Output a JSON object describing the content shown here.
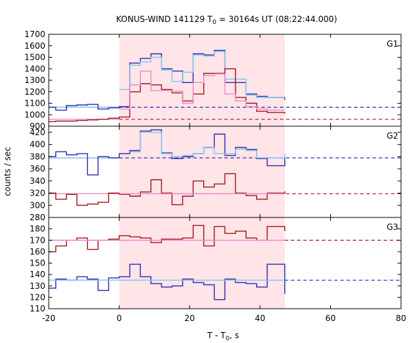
{
  "chart_data": {
    "type": "line",
    "title": "KONUS-WIND 141129 T",
    "title_sub": "0",
    "title_rest": " = 30164s UT (08:22:44.000)",
    "xlabel": "T - T",
    "xlabel_sub": "0",
    "xlabel_rest": ", s",
    "ylabel": "counts / sec",
    "xlim": [
      -20,
      80
    ],
    "xticks": [
      -20,
      0,
      20,
      40,
      60,
      80
    ],
    "shaded_interval": [
      0,
      47
    ],
    "colors": {
      "dark_blue": "#2a2ab0",
      "light_blue": "#7ec8f0",
      "dark_red": "#a01818",
      "pink": "#ee88cc",
      "shade": "#ffe4e8"
    },
    "panels": [
      {
        "label": "G1",
        "ylim": [
          900,
          1700
        ],
        "yticks": [
          900,
          1000,
          1100,
          1200,
          1300,
          1400,
          1500,
          1600,
          1700
        ],
        "series": [
          {
            "color_key": "dark_blue",
            "edges": [
              -20,
              -18,
              -15,
              -12,
              -9,
              -6,
              -3,
              0,
              3,
              6,
              9,
              12,
              15,
              18,
              21,
              24,
              27,
              30,
              33,
              36,
              39,
              42,
              47
            ],
            "values": [
              1065,
              1040,
              1080,
              1085,
              1090,
              1050,
              1060,
              1070,
              1450,
              1490,
              1530,
              1400,
              1380,
              1280,
              1530,
              1520,
              1560,
              1280,
              1280,
              1180,
              1160,
              1150,
              1130
            ]
          },
          {
            "color_key": "light_blue",
            "edges": [
              0,
              3,
              6,
              9,
              12,
              15,
              18,
              21,
              24,
              27,
              30,
              33,
              36,
              39,
              42,
              47
            ],
            "values": [
              1220,
              1430,
              1460,
              1500,
              1390,
              1290,
              1370,
              1520,
              1510,
              1550,
              1310,
              1310,
              1170,
              1150,
              1150,
              1150
            ]
          },
          {
            "color_key": "dark_red",
            "edges": [
              -20,
              -18,
              -12,
              -9,
              -6,
              -3,
              0,
              3,
              6,
              9,
              12,
              15,
              18,
              21,
              24,
              27,
              30,
              33,
              36,
              39,
              42,
              47
            ],
            "values": [
              940,
              945,
              950,
              955,
              960,
              970,
              980,
              1200,
              1270,
              1260,
              1220,
              1190,
              1120,
              1180,
              1360,
              1360,
              1400,
              1150,
              1100,
              1030,
              1020,
              1010
            ]
          },
          {
            "color_key": "pink",
            "edges": [
              0,
              3,
              6,
              9,
              12,
              15,
              18,
              21,
              24,
              27,
              30,
              33,
              36,
              39,
              42,
              47
            ],
            "values": [
              1050,
              1260,
              1380,
              1210,
              1210,
              1205,
              1100,
              1280,
              1340,
              1355,
              1180,
              1120,
              1070,
              1050,
              1040,
              1040
            ]
          }
        ],
        "backgrounds": [
          {
            "color_key": "dark_blue",
            "solid_x": [
              -20,
              0
            ],
            "dash_x": [
              0,
              80
            ],
            "value": 1065
          },
          {
            "color_key": "light_blue",
            "solid_x": [
              -20,
              0
            ],
            "dash_x": [
              0,
              0
            ],
            "value": 1065
          },
          {
            "color_key": "dark_red",
            "solid_x": [
              -20,
              0
            ],
            "dash_x": [
              0,
              80
            ],
            "value": 960
          },
          {
            "color_key": "pink",
            "solid_x": [
              -20,
              0
            ],
            "dash_x": [
              0,
              0
            ],
            "value": 960
          }
        ]
      },
      {
        "label": "G2",
        "ylim": [
          280,
          430
        ],
        "yticks": [
          280,
          300,
          320,
          340,
          360,
          380,
          400,
          420
        ],
        "series": [
          {
            "color_key": "dark_blue",
            "edges": [
              -20,
              -18,
              -15,
              -12,
              -9,
              -6,
              -3,
              0,
              3,
              6,
              9,
              12,
              15,
              18,
              21,
              24,
              27,
              30,
              33,
              36,
              39,
              42,
              47
            ],
            "values": [
              380,
              388,
              383,
              385,
              350,
              380,
              378,
              385,
              390,
              422,
              424,
              386,
              377,
              380,
              385,
              395,
              417,
              382,
              395,
              392,
              377,
              365,
              385
            ]
          },
          {
            "color_key": "light_blue",
            "edges": [
              3,
              6,
              9,
              12,
              15,
              18,
              21,
              24,
              27,
              30,
              33,
              36,
              39,
              42,
              47
            ],
            "values": [
              388,
              420,
              420,
              385,
              380,
              382,
              385,
              395,
              385,
              385,
              392,
              390,
              378,
              378,
              385
            ]
          },
          {
            "color_key": "dark_red",
            "edges": [
              -20,
              -18,
              -15,
              -12,
              -9,
              -6,
              -3,
              0,
              3,
              6,
              9,
              12,
              15,
              18,
              21,
              24,
              27,
              30,
              33,
              36,
              39,
              42,
              47
            ],
            "values": [
              320,
              310,
              318,
              300,
              302,
              305,
              320,
              318,
              315,
              322,
              342,
              320,
              301,
              315,
              340,
              330,
              335,
              352,
              320,
              316,
              310,
              320,
              323
            ]
          },
          {
            "color_key": "pink",
            "edges": [
              0,
              47
            ],
            "values": [
              319
            ]
          }
        ],
        "backgrounds": [
          {
            "color_key": "dark_blue",
            "solid_x": [
              -20,
              0
            ],
            "dash_x": [
              0,
              80
            ],
            "value": 378
          },
          {
            "color_key": "light_blue",
            "solid_x": [
              -20,
              0
            ],
            "dash_x": [
              0,
              0
            ],
            "value": 378
          },
          {
            "color_key": "dark_red",
            "solid_x": [
              -20,
              0
            ],
            "dash_x": [
              0,
              80
            ],
            "value": 319
          },
          {
            "color_key": "pink",
            "solid_x": [
              -20,
              0
            ],
            "dash_x": [
              0,
              0
            ],
            "value": 319
          }
        ]
      },
      {
        "label": "G3",
        "ylim": [
          110,
          190
        ],
        "yticks": [
          110,
          120,
          130,
          140,
          150,
          160,
          170,
          180,
          190
        ],
        "series": [
          {
            "color_key": "dark_red",
            "edges": [
              -20,
              -18,
              -15,
              -12,
              -9,
              -6,
              -3,
              0,
              3,
              6,
              9,
              12,
              15,
              18,
              21,
              24,
              27,
              30,
              33,
              36,
              39,
              42,
              47
            ],
            "values": [
              160,
              165,
              170,
              172,
              162,
              170,
              171,
              174,
              173,
              172,
              168,
              171,
              171,
              172,
              183,
              165,
              182,
              176,
              178,
              172,
              170,
              182,
              178
            ]
          },
          {
            "color_key": "pink",
            "edges": [
              -20,
              47
            ],
            "values": [
              170
            ]
          },
          {
            "color_key": "dark_blue",
            "edges": [
              -20,
              -18,
              -15,
              -12,
              -9,
              -6,
              -3,
              0,
              3,
              6,
              9,
              12,
              15,
              18,
              21,
              24,
              27,
              30,
              33,
              36,
              39,
              42,
              47
            ],
            "values": [
              128,
              136,
              135,
              138,
              136,
              126,
              137,
              138,
              149,
              138,
              132,
              129,
              130,
              136,
              133,
              131,
              118,
              136,
              133,
              132,
              129,
              149,
              123
            ]
          },
          {
            "color_key": "light_blue",
            "edges": [
              -20,
              47
            ],
            "values": [
              135
            ]
          }
        ],
        "backgrounds": [
          {
            "color_key": "dark_red",
            "solid_x": [
              -20,
              0
            ],
            "dash_x": [
              47,
              80
            ],
            "value": 170
          },
          {
            "color_key": "pink",
            "solid_x": [
              -20,
              0
            ],
            "dash_x": [
              0,
              0
            ],
            "value": 170
          },
          {
            "color_key": "dark_blue",
            "solid_x": [
              -20,
              0
            ],
            "dash_x": [
              47,
              80
            ],
            "value": 135
          },
          {
            "color_key": "light_blue",
            "solid_x": [
              -20,
              0
            ],
            "dash_x": [
              0,
              0
            ],
            "value": 135
          }
        ]
      }
    ]
  }
}
